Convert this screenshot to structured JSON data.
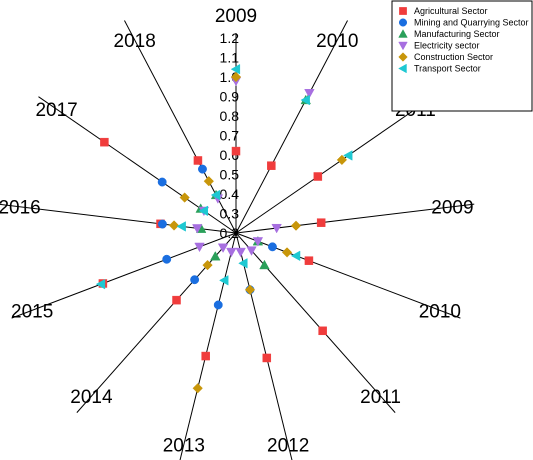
{
  "chart_data": {
    "type": "scatter",
    "subtype": "polar-radial",
    "categories": [
      "2009",
      "2010",
      "2011",
      "2009",
      "2010",
      "2011",
      "2012",
      "2013",
      "2014",
      "2015",
      "2016",
      "2017",
      "2018"
    ],
    "radial_ticks": [
      "0.2",
      "0.3",
      "0.4",
      "0.5",
      "0.6",
      "0.7",
      "0.8",
      "0.9",
      "1.0",
      "1.1",
      "1.2"
    ],
    "rlim": [
      0.2,
      1.2
    ],
    "legend_position": "top-right",
    "series": [
      {
        "name": "Agricultural Sector",
        "marker": "square",
        "color": "#f03c3c",
        "values": [
          0.62,
          0.59,
          0.71,
          0.64,
          0.6,
          0.87,
          0.86,
          0.85,
          0.66,
          0.93,
          0.59,
          1.02,
          0.62
        ]
      },
      {
        "name": "Mining and Quarrying Sector",
        "marker": "circle",
        "color": "#1a6ee0",
        "values": [
          null,
          null,
          null,
          null,
          0.4,
          null,
          0.5,
          0.58,
          0.52,
          0.58,
          0.58,
          0.66,
          0.57
        ]
      },
      {
        "name": "Manufacturing Sector",
        "marker": "triangle-up",
        "color": "#2aa05a",
        "values": [
          null,
          0.97,
          null,
          null,
          0.32,
          0.42,
          null,
          null,
          0.36,
          null,
          0.38,
          0.42,
          0.42
        ]
      },
      {
        "name": "Electricity sector",
        "marker": "triangle-down",
        "color": "#a76fe0",
        "values": [
          0.98,
          1.01,
          null,
          0.41,
          0.32,
          0.32,
          0.3,
          0.3,
          0.3,
          0.4,
          0.4,
          0.4,
          0.4
        ]
      },
      {
        "name": "Construction Sector",
        "marker": "diamond",
        "color": "#c8960a",
        "values": [
          1.0,
          null,
          0.86,
          0.51,
          0.48,
          null,
          0.5,
          1.02,
          0.42,
          null,
          0.52,
          0.52,
          0.5
        ]
      },
      {
        "name": "Transport Sector",
        "marker": "triangle-left",
        "color": "#1ec8d2",
        "values": [
          1.04,
          0.97,
          0.9,
          null,
          0.53,
          null,
          0.36,
          0.45,
          null,
          0.94,
          0.48,
          0.4,
          0.42
        ]
      }
    ]
  }
}
